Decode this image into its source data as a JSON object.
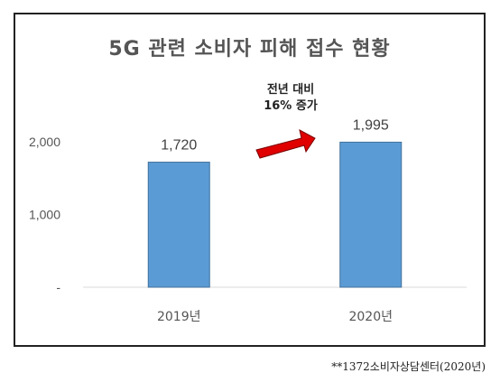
{
  "chart_data": {
    "type": "bar",
    "title": "5G 관련 소비자 피해 접수 현황",
    "categories": [
      "2019년",
      "2020년"
    ],
    "values": [
      1720,
      1995
    ],
    "data_labels": [
      "1,720",
      "1,995"
    ],
    "yticks": [
      {
        "value": 0,
        "label": "-"
      },
      {
        "value": 1000,
        "label": "1,000"
      },
      {
        "value": 2000,
        "label": "2,000"
      }
    ],
    "ylim": [
      0,
      2000
    ],
    "xlabel": "",
    "ylabel": "",
    "grid": false,
    "bar_color": "#5B9BD5",
    "annotation": {
      "lines": [
        "전년 대비",
        "16% 증가"
      ],
      "arrow_color": "#E00000"
    }
  },
  "source": "**1372소비자상담센터(2020년)"
}
